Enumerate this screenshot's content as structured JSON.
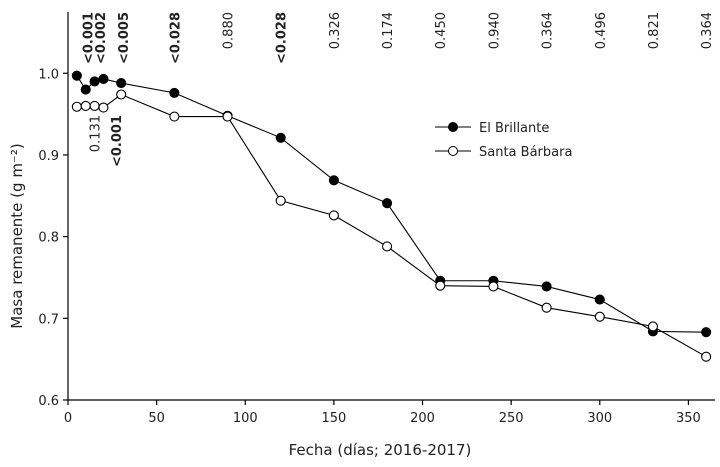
{
  "chart_data": {
    "type": "line",
    "x": [
      5,
      10,
      15,
      20,
      30,
      60,
      90,
      120,
      150,
      180,
      210,
      240,
      270,
      300,
      330,
      360
    ],
    "series": [
      {
        "name": "El Brillante",
        "color": "#000000",
        "marker": "filled",
        "values": [
          0.997,
          0.98,
          0.99,
          0.993,
          0.988,
          0.976,
          0.948,
          0.921,
          0.869,
          0.841,
          0.746,
          0.746,
          0.739,
          0.723,
          0.684,
          0.683
        ]
      },
      {
        "name": "Santa Bárbara",
        "color": "#000000",
        "marker": "open",
        "values": [
          0.959,
          0.96,
          0.96,
          0.958,
          0.974,
          0.947,
          0.947,
          0.844,
          0.826,
          0.788,
          0.74,
          0.739,
          0.713,
          0.702,
          0.69,
          0.653
        ]
      }
    ],
    "xlabel": "Fecha (días; 2016-2017)",
    "ylabel": "Masa remanente (g m⁻²)",
    "xlim": [
      0,
      365
    ],
    "ylim": [
      0.6,
      1.075
    ],
    "xticks": [
      0,
      50,
      100,
      150,
      200,
      250,
      300,
      350
    ],
    "yticks": [
      0.6,
      0.7,
      0.8,
      0.9,
      {
        "value": 1,
        "label": "1.0"
      }
    ],
    "legend": "right",
    "annotations": [
      {
        "x": 11,
        "text": "<0.001",
        "bold": true
      },
      {
        "x": 18,
        "text": "<0.002",
        "bold": true
      },
      {
        "x": 31,
        "text": "<0.005",
        "bold": true
      },
      {
        "x": 60,
        "text": "<0.028",
        "bold": true
      },
      {
        "x": 90,
        "text": "0.880",
        "bold": false
      },
      {
        "x": 120,
        "text": "<0.028",
        "bold": true
      },
      {
        "x": 150,
        "text": "0.326",
        "bold": false
      },
      {
        "x": 180,
        "text": "0.174",
        "bold": false
      },
      {
        "x": 210,
        "text": "0.450",
        "bold": false
      },
      {
        "x": 240,
        "text": "0.940",
        "bold": false
      },
      {
        "x": 270,
        "text": "0.364",
        "bold": false
      },
      {
        "x": 300,
        "text": "0.496",
        "bold": false
      },
      {
        "x": 330,
        "text": "0.821",
        "bold": false
      },
      {
        "x": 360,
        "text": "0.364",
        "bold": false
      }
    ],
    "annotations_below": [
      {
        "x": 15,
        "text": "0.131",
        "bold": false
      },
      {
        "x": 27,
        "text": "<0.001",
        "bold": true
      }
    ]
  }
}
